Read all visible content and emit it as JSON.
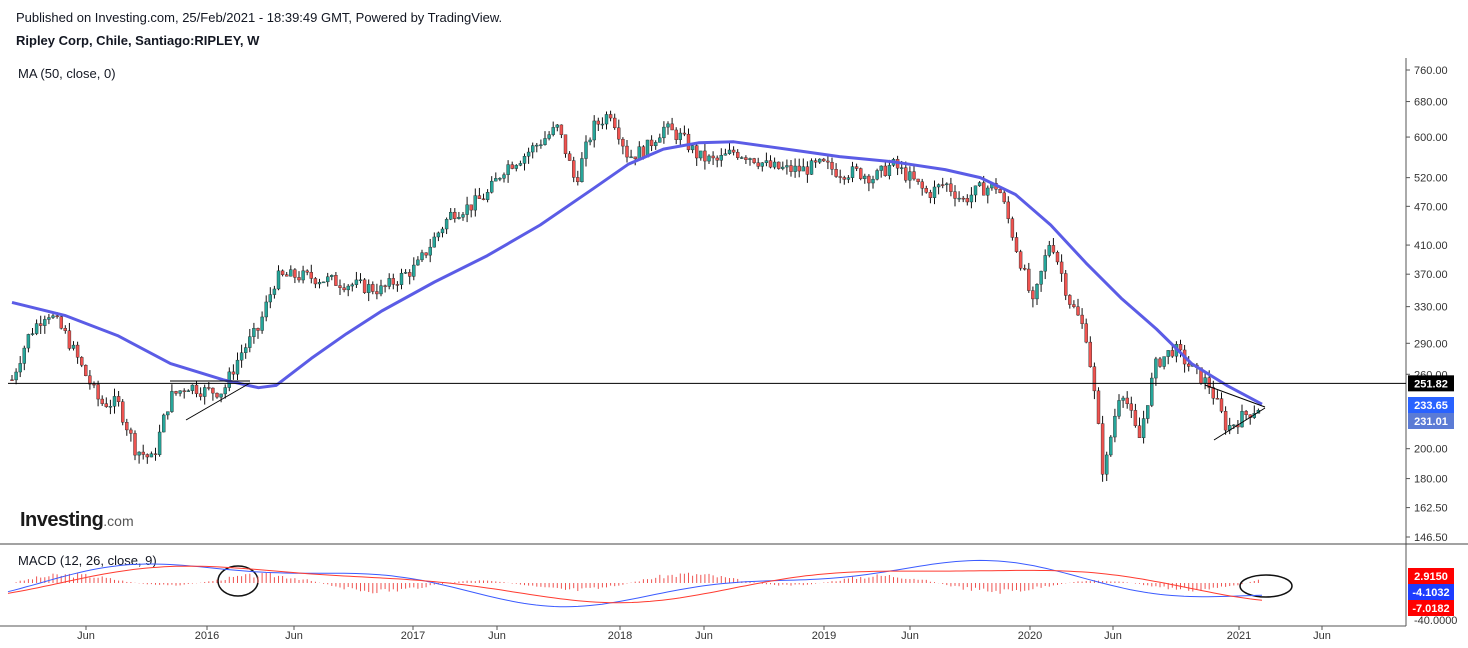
{
  "header": {
    "published": "Published on Investing.com, 25/Feb/2021 - 18:39:49 GMT, Powered by TradingView.",
    "symbol": "Ripley Corp, Chile, Santiago:RIPLEY, W"
  },
  "logo": {
    "main": "Investing",
    "suffix": ".com"
  },
  "colors": {
    "up": "#26a69a",
    "down": "#ef5350",
    "ma": "#5b5ce6",
    "macd_line": "#3b5bff",
    "signal_line": "#ff3b30",
    "hist": "#ef5350"
  },
  "chart_data": [
    {
      "type": "candlestick",
      "title": "Ripley Corp, Chile, Santiago:RIPLEY, W",
      "indicator_label": "MA (50, close, 0)",
      "x_ticks": [
        "Jun",
        "2016",
        "Jun",
        "2017",
        "Jun",
        "2018",
        "Jun",
        "2019",
        "Jun",
        "2020",
        "Jun",
        "2021",
        "Jun"
      ],
      "y_ticks": [
        "760.00",
        "680.00",
        "600.00",
        "520.00",
        "470.00",
        "410.00",
        "370.00",
        "330.00",
        "290.00",
        "260.00",
        "200.00",
        "180.00",
        "162.50",
        "146.50"
      ],
      "y_scale": "log",
      "ylim": [
        146.5,
        760
      ],
      "horizontal_line": 251.82,
      "price_badges": [
        {
          "value": "251.82",
          "color": "#000000"
        },
        {
          "value": "233.65",
          "color": "#2962ff"
        },
        {
          "value": "231.01",
          "color": "#5b7bd5"
        }
      ],
      "close_series": [
        {
          "x": "2015-03",
          "y": 255
        },
        {
          "x": "2015-04",
          "y": 300
        },
        {
          "x": "2015-05",
          "y": 325
        },
        {
          "x": "2015-06",
          "y": 300
        },
        {
          "x": "2015-07",
          "y": 265
        },
        {
          "x": "2015-08",
          "y": 235
        },
        {
          "x": "2015-09",
          "y": 235
        },
        {
          "x": "2015-10",
          "y": 200
        },
        {
          "x": "2015-11",
          "y": 192
        },
        {
          "x": "2015-12",
          "y": 240
        },
        {
          "x": "2016-01",
          "y": 250
        },
        {
          "x": "2016-02",
          "y": 245
        },
        {
          "x": "2016-03",
          "y": 245
        },
        {
          "x": "2016-04",
          "y": 280
        },
        {
          "x": "2016-05",
          "y": 305
        },
        {
          "x": "2016-06",
          "y": 365
        },
        {
          "x": "2016-07",
          "y": 368
        },
        {
          "x": "2016-08",
          "y": 366
        },
        {
          "x": "2016-10",
          "y": 358
        },
        {
          "x": "2016-12",
          "y": 350
        },
        {
          "x": "2017-02",
          "y": 380
        },
        {
          "x": "2017-03",
          "y": 420
        },
        {
          "x": "2017-04",
          "y": 460
        },
        {
          "x": "2017-05",
          "y": 470
        },
        {
          "x": "2017-06",
          "y": 490
        },
        {
          "x": "2017-07",
          "y": 540
        },
        {
          "x": "2017-08",
          "y": 560
        },
        {
          "x": "2017-09",
          "y": 590
        },
        {
          "x": "2017-10",
          "y": 620
        },
        {
          "x": "2017-11",
          "y": 510
        },
        {
          "x": "2017-12",
          "y": 620
        },
        {
          "x": "2018-01",
          "y": 655
        },
        {
          "x": "2018-02",
          "y": 560
        },
        {
          "x": "2018-03",
          "y": 575
        },
        {
          "x": "2018-04",
          "y": 620
        },
        {
          "x": "2018-05",
          "y": 600
        },
        {
          "x": "2018-06",
          "y": 560
        },
        {
          "x": "2018-07",
          "y": 550
        },
        {
          "x": "2018-08",
          "y": 570
        },
        {
          "x": "2018-09",
          "y": 560
        },
        {
          "x": "2018-10",
          "y": 540
        },
        {
          "x": "2018-11",
          "y": 535
        },
        {
          "x": "2018-12",
          "y": 535
        },
        {
          "x": "2019-01",
          "y": 545
        },
        {
          "x": "2019-02",
          "y": 530
        },
        {
          "x": "2019-03",
          "y": 530
        },
        {
          "x": "2019-04",
          "y": 520
        },
        {
          "x": "2019-05",
          "y": 545
        },
        {
          "x": "2019-06",
          "y": 520
        },
        {
          "x": "2019-07",
          "y": 490
        },
        {
          "x": "2019-08",
          "y": 510
        },
        {
          "x": "2019-09",
          "y": 480
        },
        {
          "x": "2019-10",
          "y": 500
        },
        {
          "x": "2019-11",
          "y": 505
        },
        {
          "x": "2019-12",
          "y": 410
        },
        {
          "x": "2020-01",
          "y": 330
        },
        {
          "x": "2020-02",
          "y": 420
        },
        {
          "x": "2020-03",
          "y": 340
        },
        {
          "x": "2020-04",
          "y": 300
        },
        {
          "x": "2020-05",
          "y": 180
        },
        {
          "x": "2020-06",
          "y": 250
        },
        {
          "x": "2020-07",
          "y": 205
        },
        {
          "x": "2020-08",
          "y": 270
        },
        {
          "x": "2020-09",
          "y": 285
        },
        {
          "x": "2020-10",
          "y": 265
        },
        {
          "x": "2020-11",
          "y": 250
        },
        {
          "x": "2020-12",
          "y": 215
        },
        {
          "x": "2021-01",
          "y": 225
        },
        {
          "x": "2021-02",
          "y": 233
        }
      ],
      "ma_series": [
        {
          "x": "2015-03",
          "y": 335
        },
        {
          "x": "2015-06",
          "y": 320
        },
        {
          "x": "2015-09",
          "y": 298
        },
        {
          "x": "2015-12",
          "y": 270
        },
        {
          "x": "2016-03",
          "y": 255
        },
        {
          "x": "2016-05",
          "y": 248
        },
        {
          "x": "2016-06",
          "y": 250
        },
        {
          "x": "2016-08",
          "y": 275
        },
        {
          "x": "2016-10",
          "y": 300
        },
        {
          "x": "2016-12",
          "y": 325
        },
        {
          "x": "2017-03",
          "y": 360
        },
        {
          "x": "2017-06",
          "y": 395
        },
        {
          "x": "2017-09",
          "y": 440
        },
        {
          "x": "2017-12",
          "y": 500
        },
        {
          "x": "2018-02",
          "y": 545
        },
        {
          "x": "2018-04",
          "y": 575
        },
        {
          "x": "2018-06",
          "y": 588
        },
        {
          "x": "2018-08",
          "y": 590
        },
        {
          "x": "2018-10",
          "y": 580
        },
        {
          "x": "2018-12",
          "y": 570
        },
        {
          "x": "2019-02",
          "y": 560
        },
        {
          "x": "2019-05",
          "y": 550
        },
        {
          "x": "2019-08",
          "y": 535
        },
        {
          "x": "2019-10",
          "y": 520
        },
        {
          "x": "2019-12",
          "y": 490
        },
        {
          "x": "2020-02",
          "y": 440
        },
        {
          "x": "2020-04",
          "y": 385
        },
        {
          "x": "2020-06",
          "y": 340
        },
        {
          "x": "2020-08",
          "y": 305
        },
        {
          "x": "2020-10",
          "y": 270
        },
        {
          "x": "2020-12",
          "y": 250
        },
        {
          "x": "2021-02",
          "y": 234
        }
      ]
    },
    {
      "type": "line",
      "title": "MACD (12, 26, close, 9)",
      "y_ticks": [
        "-40.0000"
      ],
      "value_badges": [
        {
          "value": "2.9150",
          "color": "#ff0000"
        },
        {
          "value": "-4.1032",
          "color": "#1e3cff"
        },
        {
          "value": "-7.0182",
          "color": "#ff0000"
        }
      ]
    }
  ]
}
